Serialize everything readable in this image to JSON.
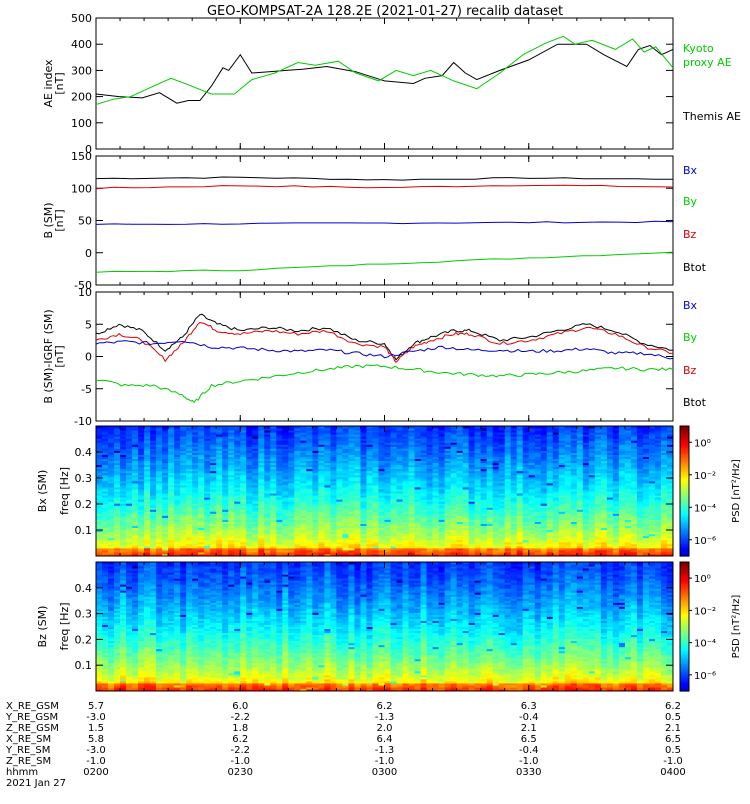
{
  "title": "GEO-KOMPSAT-2A 128.2E (2021-01-27) recalib dataset",
  "chart_data": [
    {
      "type": "line",
      "ylabel": [
        "AE index",
        "[nT]"
      ],
      "ylim": [
        0,
        500
      ],
      "yticks": [
        "0",
        "100",
        "200",
        "300",
        "400",
        "500"
      ],
      "legend": [
        {
          "text": "Kyoto",
          "color": "#00cc00"
        },
        {
          "text": "proxy AE",
          "color": "#00cc00"
        },
        {
          "text": "Themis AE",
          "color": "#000000"
        }
      ],
      "series": [
        {
          "name": "Themis AE",
          "color": "#000000",
          "x": [
            0,
            4,
            8,
            11,
            14,
            16,
            18,
            20,
            22,
            23,
            25,
            27,
            30,
            33,
            36,
            40,
            45,
            50,
            55,
            57,
            60,
            62,
            64,
            66,
            70,
            75,
            80,
            85,
            88,
            92,
            94,
            96,
            98,
            100
          ],
          "y": [
            210,
            200,
            195,
            215,
            175,
            185,
            185,
            240,
            310,
            300,
            360,
            290,
            295,
            300,
            305,
            315,
            295,
            260,
            250,
            270,
            280,
            330,
            290,
            265,
            300,
            340,
            400,
            400,
            360,
            315,
            380,
            395,
            360,
            380
          ]
        },
        {
          "name": "Kyoto proxy AE",
          "color": "#00cc00",
          "x": [
            0,
            3,
            6,
            9,
            13,
            16,
            20,
            24,
            27,
            31,
            35,
            38,
            42,
            45,
            49,
            52,
            55,
            58,
            62,
            66,
            70,
            74,
            78,
            81,
            83,
            86,
            90,
            93,
            95,
            97,
            100
          ],
          "y": [
            170,
            190,
            200,
            230,
            270,
            245,
            210,
            210,
            265,
            290,
            330,
            320,
            335,
            290,
            260,
            300,
            280,
            300,
            260,
            230,
            290,
            360,
            405,
            430,
            400,
            415,
            380,
            420,
            370,
            390,
            310
          ]
        }
      ]
    },
    {
      "type": "line",
      "ylabel": [
        "B (SM)",
        "[nT]"
      ],
      "ylim": [
        -50,
        150
      ],
      "yticks": [
        "-50",
        "0",
        "50",
        "100",
        "150"
      ],
      "legend": [
        {
          "text": "Bx",
          "color": "#0000cc"
        },
        {
          "text": "By",
          "color": "#00cc00"
        },
        {
          "text": "Bz",
          "color": "#dd0000"
        },
        {
          "text": "Btot",
          "color": "#000000"
        }
      ],
      "series": [
        {
          "name": "Btot",
          "color": "#000000",
          "x": [
            0,
            25,
            50,
            75,
            100
          ],
          "y": [
            115,
            117,
            113,
            116,
            114
          ]
        },
        {
          "name": "Bz",
          "color": "#dd0000",
          "x": [
            0,
            25,
            50,
            75,
            100
          ],
          "y": [
            100,
            104,
            101,
            105,
            102
          ]
        },
        {
          "name": "Bx",
          "color": "#0000cc",
          "x": [
            0,
            25,
            50,
            75,
            100
          ],
          "y": [
            44,
            45,
            46,
            47,
            48
          ]
        },
        {
          "name": "By",
          "color": "#00cc00",
          "x": [
            0,
            25,
            50,
            75,
            100
          ],
          "y": [
            -30,
            -27,
            -17,
            -8,
            1
          ]
        }
      ]
    },
    {
      "type": "line",
      "ylabel": [
        "B (SM)-IGRF (SM)",
        "[nT]"
      ],
      "ylim": [
        -10,
        10
      ],
      "yticks": [
        "-10",
        "-5",
        "0",
        "5",
        "10"
      ],
      "legend": [
        {
          "text": "Bx",
          "color": "#0000cc"
        },
        {
          "text": "By",
          "color": "#00cc00"
        },
        {
          "text": "Bz",
          "color": "#dd0000"
        },
        {
          "text": "Btot",
          "color": "#000000"
        }
      ],
      "series": [
        {
          "name": "Btot",
          "color": "#000000",
          "x": [
            0,
            4,
            8,
            12,
            15,
            18,
            21,
            25,
            30,
            35,
            40,
            45,
            50,
            52,
            55,
            58,
            62,
            65,
            70,
            75,
            80,
            85,
            90,
            95,
            100
          ],
          "y": [
            3.5,
            5,
            4,
            1,
            3,
            6.5,
            5,
            4,
            4.5,
            4,
            4.5,
            2.5,
            2,
            -0.5,
            2,
            3,
            4,
            4,
            2.5,
            3,
            4,
            5,
            4,
            2,
            1
          ]
        },
        {
          "name": "Bz",
          "color": "#dd0000",
          "x": [
            0,
            4,
            8,
            12,
            15,
            18,
            21,
            25,
            30,
            35,
            40,
            45,
            50,
            52,
            55,
            58,
            62,
            65,
            70,
            75,
            80,
            85,
            90,
            95,
            100
          ],
          "y": [
            2.5,
            3.5,
            2.5,
            -0.5,
            2,
            5.5,
            4,
            3.5,
            4,
            3.5,
            4,
            2,
            1.5,
            -0.8,
            1.5,
            2.5,
            3.5,
            3.5,
            2,
            2.5,
            3.5,
            4.5,
            3.5,
            1.5,
            0.5
          ]
        },
        {
          "name": "Bx",
          "color": "#0000cc",
          "x": [
            0,
            5,
            10,
            15,
            20,
            25,
            30,
            35,
            40,
            45,
            50,
            55,
            60,
            65,
            70,
            75,
            80,
            85,
            90,
            95,
            100
          ],
          "y": [
            2,
            2.3,
            2,
            2.5,
            1.5,
            1.3,
            1.0,
            0.8,
            1.0,
            0.5,
            0,
            0.8,
            1.5,
            1.0,
            1.0,
            0.8,
            0.9,
            1.2,
            0.5,
            0.5,
            -0.3
          ]
        },
        {
          "name": "By",
          "color": "#00cc00",
          "x": [
            0,
            5,
            10,
            15,
            17,
            20,
            25,
            30,
            35,
            40,
            45,
            50,
            55,
            60,
            65,
            70,
            75,
            80,
            85,
            90,
            95,
            100
          ],
          "y": [
            -3.5,
            -4.5,
            -4.5,
            -6,
            -7.2,
            -4.5,
            -3.8,
            -3.2,
            -2.5,
            -2,
            -1.5,
            -1.5,
            -2,
            -2.5,
            -2.8,
            -3,
            -2.8,
            -2.5,
            -2.2,
            -1.8,
            -2,
            -2
          ]
        }
      ]
    },
    {
      "type": "heatmap",
      "ylabel": [
        "Bx (SM)",
        "freq [Hz]"
      ],
      "ylim": [
        0,
        0.5
      ],
      "yticks": [
        "0.1",
        "0.2",
        "0.3",
        "0.4"
      ],
      "colorbar": {
        "label": "PSD [nT²/Hz]",
        "ticks": [
          "10⁰",
          "10⁻²",
          "10⁻⁴",
          "10⁻⁶"
        ],
        "range_log10": [
          -7,
          1
        ]
      }
    },
    {
      "type": "heatmap",
      "ylabel": [
        "Bz (SM)",
        "freq [Hz]"
      ],
      "ylim": [
        0,
        0.5
      ],
      "yticks": [
        "0.1",
        "0.2",
        "0.3",
        "0.4"
      ],
      "colorbar": {
        "label": "PSD [nT²/Hz]",
        "ticks": [
          "10⁰",
          "10⁻²",
          "10⁻⁴",
          "10⁻⁶"
        ],
        "range_log10": [
          -7,
          1
        ]
      }
    }
  ],
  "ephemeris": {
    "labels": [
      "X_RE_GSM",
      "Y_RE_GSM",
      "Z_RE_GSM",
      "X_RE_SM",
      "Y_RE_SM",
      "Z_RE_SM",
      "hhmm",
      "2021 Jan 27"
    ],
    "columns": [
      [
        "5.7",
        "-3.0",
        "1.5",
        "5.8",
        "-3.0",
        "-1.0",
        "0200"
      ],
      [
        "6.0",
        "-2.2",
        "1.8",
        "6.2",
        "-2.2",
        "-1.0",
        "0230"
      ],
      [
        "6.2",
        "-1.3",
        "2.0",
        "6.4",
        "-1.3",
        "-1.0",
        "0300"
      ],
      [
        "6.3",
        "-0.4",
        "2.1",
        "6.5",
        "-0.4",
        "-1.0",
        "0330"
      ],
      [
        "6.2",
        "0.5",
        "2.1",
        "6.5",
        "0.5",
        "-1.0",
        "0400"
      ]
    ]
  }
}
